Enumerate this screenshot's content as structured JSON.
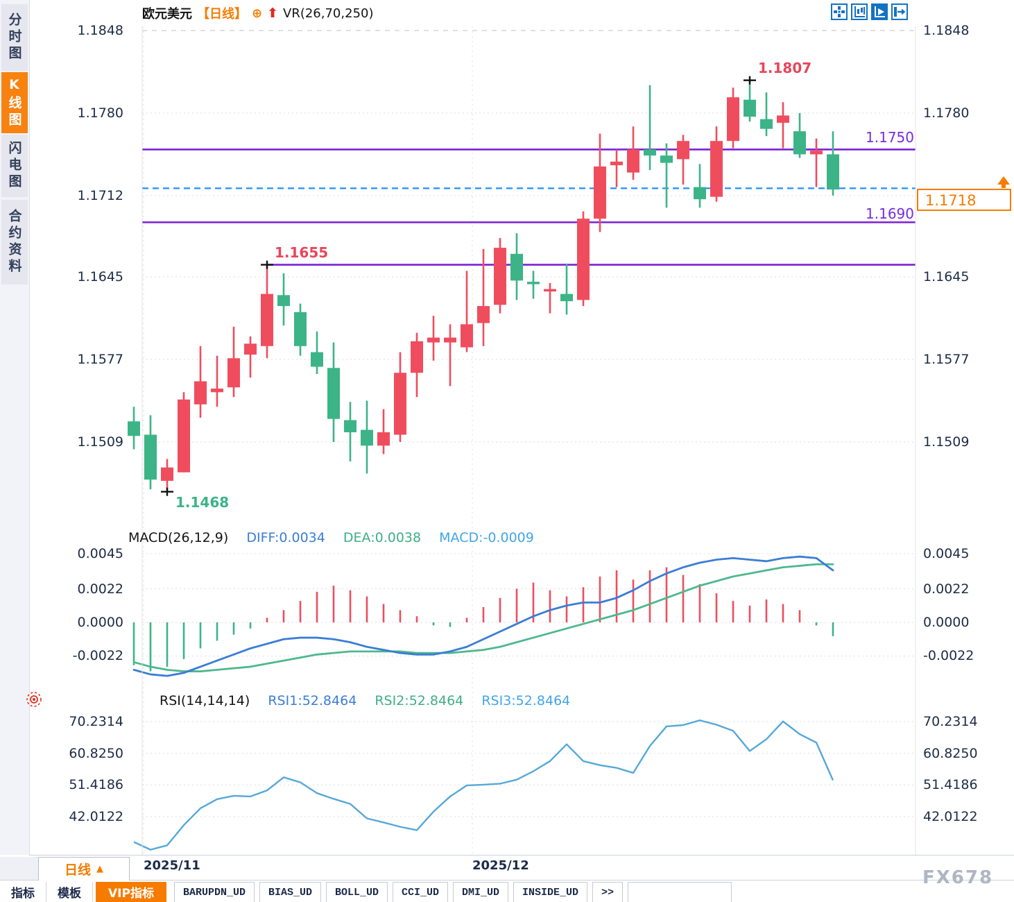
{
  "sidebar": {
    "tabs": [
      {
        "label": "分时图",
        "active": false
      },
      {
        "label": "K线图",
        "active": true
      },
      {
        "label": "闪电图",
        "active": false
      },
      {
        "label": "合约资料",
        "active": false
      }
    ]
  },
  "header": {
    "symbol": "欧元美元",
    "period_tag": "【日线】",
    "plus_icon": "⊕",
    "arrow_icon": "⬆",
    "overlay": "VR(26,70,250)"
  },
  "toolbar": {
    "icons": [
      "crosshair-grid-icon",
      "axis-scale-icon",
      "axis-play-icon",
      "jump-latest-icon"
    ]
  },
  "levels": {
    "r1": "1.1750",
    "s1": "1.1690"
  },
  "annotations": {
    "high": "1.1807",
    "mid": "1.1655",
    "low": "1.1468"
  },
  "price_box": {
    "value": "1.1718"
  },
  "macd_header": {
    "title": "MACD(26,12,9)",
    "diff": "DIFF:0.0034",
    "dea": "DEA:0.0038",
    "macd": "MACD:-0.0009"
  },
  "rsi_header": {
    "title": "RSI(14,14,14)",
    "rsi1": "RSI1:52.8464",
    "rsi2": "RSI2:52.8464",
    "rsi3": "RSI3:52.8464"
  },
  "bottom": {
    "period_label": "日线",
    "period_arrow": "▲",
    "watermark": "FX678",
    "tabs": [
      {
        "label": "指标",
        "style": "plain"
      },
      {
        "label": "模板",
        "style": "plain"
      },
      {
        "label": "VIP指标",
        "style": "vip"
      },
      {
        "label": "BARUPDN_UD",
        "style": "ind"
      },
      {
        "label": "BIAS_UD",
        "style": "ind"
      },
      {
        "label": "BOLL_UD",
        "style": "ind"
      },
      {
        "label": "CCI_UD",
        "style": "ind"
      },
      {
        "label": "DMI_UD",
        "style": "ind"
      },
      {
        "label": "INSIDE_UD",
        "style": "ind"
      },
      {
        "label": ">>",
        "style": "ind"
      },
      {
        "label": "",
        "style": "ind-empty"
      }
    ]
  },
  "colors": {
    "up": "#ef4d5e",
    "down": "#3cb487",
    "purple": "#7b1fd6",
    "dashed_blue": "#1e90ff",
    "accent_orange": "#f57c00",
    "diff_line": "#3a7dd6",
    "dea_line": "#4db88c",
    "rsi_line": "#55a8d8"
  },
  "chart_data": {
    "type": "candlestick",
    "title": "欧元美元 日线 (EUR/USD daily)",
    "y_axis_labels": [
      "1.1848",
      "1.1780",
      "1.1712",
      "1.1645",
      "1.1577",
      "1.1509"
    ],
    "x_labels": [
      "2025/11",
      "2025/12"
    ],
    "support_resistance": [
      1.175,
      1.169,
      1.1655
    ],
    "current_price": 1.1718,
    "high_marker": {
      "index": 37,
      "price": 1.1807
    },
    "mid_marker": {
      "index": 8,
      "price": 1.1655
    },
    "low_marker": {
      "index": 2,
      "price": 1.1468
    },
    "candles": [
      [
        1.1526,
        1.1538,
        1.1503,
        1.1514
      ],
      [
        1.1515,
        1.1531,
        1.147,
        1.1478
      ],
      [
        1.1477,
        1.1495,
        1.1468,
        1.1488
      ],
      [
        1.1484,
        1.155,
        1.1484,
        1.1544
      ],
      [
        1.154,
        1.1588,
        1.1529,
        1.1559
      ],
      [
        1.155,
        1.158,
        1.1538,
        1.1553
      ],
      [
        1.1554,
        1.1604,
        1.1546,
        1.1578
      ],
      [
        1.1581,
        1.1596,
        1.1562,
        1.159
      ],
      [
        1.1588,
        1.1655,
        1.1578,
        1.1631
      ],
      [
        1.163,
        1.1648,
        1.1605,
        1.1621
      ],
      [
        1.1616,
        1.1623,
        1.158,
        1.1588
      ],
      [
        1.1583,
        1.16,
        1.1565,
        1.1571
      ],
      [
        1.157,
        1.1591,
        1.1509,
        1.1528
      ],
      [
        1.1527,
        1.1542,
        1.1493,
        1.1517
      ],
      [
        1.1519,
        1.1543,
        1.1483,
        1.1506
      ],
      [
        1.1506,
        1.1536,
        1.1499,
        1.1517
      ],
      [
        1.1515,
        1.1583,
        1.1509,
        1.1566
      ],
      [
        1.1566,
        1.1599,
        1.1546,
        1.1592
      ],
      [
        1.1591,
        1.1613,
        1.1576,
        1.1595
      ],
      [
        1.1591,
        1.1606,
        1.1555,
        1.1595
      ],
      [
        1.1587,
        1.165,
        1.1583,
        1.1606
      ],
      [
        1.1607,
        1.1668,
        1.1588,
        1.1621
      ],
      [
        1.1622,
        1.1677,
        1.1615,
        1.1669
      ],
      [
        1.1664,
        1.1681,
        1.1626,
        1.1642
      ],
      [
        1.1641,
        1.165,
        1.1627,
        1.1639
      ],
      [
        1.1633,
        1.164,
        1.1615,
        1.1635
      ],
      [
        1.1631,
        1.1656,
        1.1614,
        1.1625
      ],
      [
        1.1626,
        1.1699,
        1.1621,
        1.1693
      ],
      [
        1.1693,
        1.1763,
        1.1682,
        1.1736
      ],
      [
        1.1737,
        1.175,
        1.1719,
        1.174
      ],
      [
        1.1731,
        1.1769,
        1.1725,
        1.175
      ],
      [
        1.175,
        1.1803,
        1.1733,
        1.1745
      ],
      [
        1.1745,
        1.1755,
        1.1702,
        1.1739
      ],
      [
        1.1742,
        1.1762,
        1.1721,
        1.1757
      ],
      [
        1.1719,
        1.1738,
        1.1702,
        1.1709
      ],
      [
        1.1711,
        1.1769,
        1.1707,
        1.1757
      ],
      [
        1.1757,
        1.1801,
        1.1751,
        1.1793
      ],
      [
        1.1791,
        1.1807,
        1.1773,
        1.1777
      ],
      [
        1.1775,
        1.1797,
        1.1761,
        1.1767
      ],
      [
        1.1772,
        1.1789,
        1.1751,
        1.1778
      ],
      [
        1.1765,
        1.178,
        1.1743,
        1.1746
      ],
      [
        1.1746,
        1.1759,
        1.1719,
        1.1749
      ],
      [
        1.1746,
        1.1765,
        1.1712,
        1.1717
      ]
    ],
    "macd": {
      "axis_labels": [
        "0.0045",
        "0.0022",
        "0.0000",
        "-0.0022"
      ],
      "hist": [
        -0.0028,
        -0.0032,
        -0.0029,
        -0.0024,
        -0.0017,
        -0.0012,
        -0.0008,
        -0.0004,
        0.0003,
        0.0008,
        0.0014,
        0.002,
        0.0024,
        0.0021,
        0.0017,
        0.0012,
        0.0008,
        0.0004,
        -0.0002,
        -0.0003,
        0.0003,
        0.001,
        0.0016,
        0.0022,
        0.0026,
        0.0021,
        0.0017,
        0.0023,
        0.003,
        0.0034,
        0.0028,
        0.0034,
        0.0036,
        0.0031,
        0.0025,
        0.0019,
        0.0014,
        0.0011,
        0.0015,
        0.0012,
        0.0008,
        -0.0002,
        -0.0009
      ],
      "diff": [
        -0.0031,
        -0.0034,
        -0.0035,
        -0.0033,
        -0.0029,
        -0.0025,
        -0.0021,
        -0.0017,
        -0.0014,
        -0.0011,
        -0.001,
        -0.001,
        -0.0011,
        -0.0013,
        -0.0016,
        -0.0018,
        -0.002,
        -0.0021,
        -0.0021,
        -0.0019,
        -0.0016,
        -0.0011,
        -0.0006,
        -0.0001,
        0.0004,
        0.0008,
        0.0011,
        0.0013,
        0.0013,
        0.0016,
        0.0021,
        0.0027,
        0.0032,
        0.0036,
        0.0039,
        0.0041,
        0.0042,
        0.0041,
        0.004,
        0.0042,
        0.0043,
        0.0042,
        0.0034
      ],
      "dea": [
        -0.0026,
        -0.0029,
        -0.0031,
        -0.0032,
        -0.0032,
        -0.0031,
        -0.003,
        -0.0029,
        -0.0027,
        -0.0025,
        -0.0023,
        -0.0021,
        -0.002,
        -0.0019,
        -0.0019,
        -0.0019,
        -0.0019,
        -0.002,
        -0.002,
        -0.002,
        -0.0019,
        -0.0018,
        -0.0016,
        -0.0013,
        -0.001,
        -0.0007,
        -0.0004,
        -0.0001,
        0.0002,
        0.0005,
        0.0008,
        0.0012,
        0.0016,
        0.002,
        0.0024,
        0.0027,
        0.003,
        0.0032,
        0.0034,
        0.0036,
        0.0037,
        0.0038,
        0.0038
      ]
    },
    "rsi": {
      "axis_labels": [
        "70.2314",
        "60.8250",
        "51.4186",
        "42.0122"
      ],
      "values": [
        34.5,
        32.2,
        33.5,
        39.5,
        44.5,
        47.2,
        48.2,
        48.0,
        49.8,
        53.7,
        52.2,
        49.0,
        47.3,
        45.8,
        41.5,
        40.3,
        39.0,
        38.0,
        43.5,
        48.0,
        51.3,
        51.5,
        51.8,
        53.0,
        55.5,
        58.5,
        63.5,
        58.5,
        57.3,
        56.5,
        55.0,
        63.0,
        68.8,
        69.2,
        70.6,
        69.3,
        67.5,
        61.5,
        65.0,
        70.3,
        66.5,
        64.0,
        52.8
      ]
    }
  }
}
